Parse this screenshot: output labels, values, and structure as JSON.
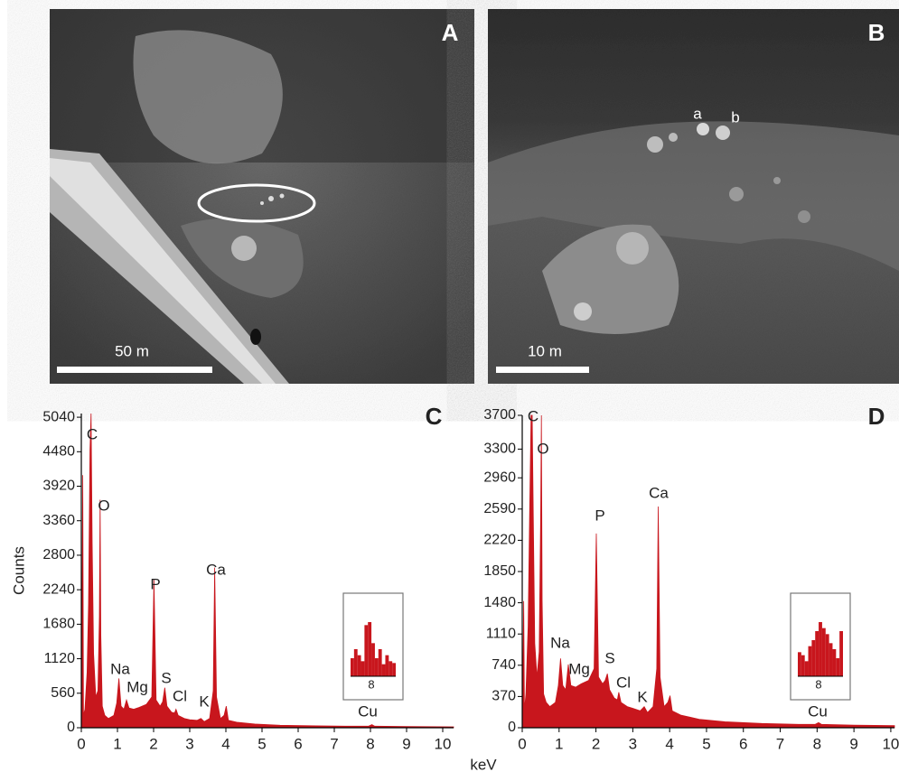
{
  "panels": [
    {
      "label": "A",
      "scale_bar": "50 m"
    },
    {
      "label": "B",
      "scale_bar": "10 m",
      "markers": [
        "a",
        "b"
      ]
    }
  ],
  "x_label": "keV",
  "chart_data": [
    {
      "type": "area",
      "label": "C",
      "y_label": "Counts",
      "color": "#c8161d",
      "xlim": [
        0,
        10.3
      ],
      "ylim": [
        0,
        5100
      ],
      "xticks": [
        0,
        1,
        2,
        3,
        4,
        5,
        6,
        7,
        8,
        9,
        10
      ],
      "yticks": [
        0,
        560,
        1120,
        1680,
        2240,
        2800,
        3360,
        3920,
        4480,
        5040
      ],
      "x": [
        0,
        0.04,
        0.06,
        0.1,
        0.16,
        0.2,
        0.24,
        0.27,
        0.3,
        0.34,
        0.4,
        0.46,
        0.5,
        0.52,
        0.54,
        0.58,
        0.65,
        0.75,
        0.9,
        0.98,
        1.04,
        1.1,
        1.18,
        1.25,
        1.32,
        1.45,
        1.6,
        1.8,
        1.95,
        2.01,
        2.07,
        2.18,
        2.25,
        2.31,
        2.37,
        2.5,
        2.58,
        2.62,
        2.68,
        2.85,
        3.0,
        3.2,
        3.31,
        3.4,
        3.55,
        3.65,
        3.69,
        3.74,
        3.85,
        3.95,
        4.01,
        4.07,
        4.3,
        4.8,
        5.5,
        6.5,
        7.5,
        7.95,
        8.04,
        8.12,
        9,
        10.3
      ],
      "values": [
        0,
        4100,
        200,
        300,
        900,
        2000,
        4500,
        5100,
        3000,
        1200,
        500,
        600,
        1800,
        3700,
        1500,
        350,
        200,
        150,
        200,
        400,
        800,
        350,
        300,
        450,
        320,
        300,
        330,
        380,
        500,
        2400,
        450,
        350,
        420,
        650,
        350,
        250,
        240,
        300,
        200,
        150,
        130,
        120,
        150,
        100,
        150,
        600,
        2600,
        500,
        150,
        200,
        350,
        120,
        90,
        60,
        40,
        30,
        25,
        25,
        50,
        25,
        20,
        15
      ],
      "peaks": [
        "C",
        "O",
        "Na",
        "Mg",
        "P",
        "S",
        "Cl",
        "K",
        "Ca",
        "Cu"
      ],
      "inset": {
        "tick": 8,
        "values": [
          30,
          45,
          35,
          25,
          85,
          90,
          55,
          30,
          45,
          20,
          35,
          25,
          22
        ]
      }
    },
    {
      "type": "area",
      "label": "D",
      "color": "#c8161d",
      "xlim": [
        0,
        10.1
      ],
      "ylim": [
        0,
        3700
      ],
      "xticks": [
        0,
        1,
        2,
        3,
        4,
        5,
        6,
        7,
        8,
        9,
        10
      ],
      "yticks": [
        0,
        370,
        740,
        1110,
        1480,
        1850,
        2220,
        2590,
        2960,
        3300,
        3700
      ],
      "x": [
        0,
        0.04,
        0.06,
        0.1,
        0.16,
        0.2,
        0.24,
        0.27,
        0.3,
        0.34,
        0.4,
        0.46,
        0.5,
        0.52,
        0.54,
        0.58,
        0.65,
        0.75,
        0.9,
        0.98,
        1.04,
        1.1,
        1.18,
        1.25,
        1.32,
        1.45,
        1.6,
        1.8,
        1.95,
        2.01,
        2.07,
        2.18,
        2.25,
        2.31,
        2.37,
        2.5,
        2.58,
        2.62,
        2.68,
        2.85,
        3.0,
        3.2,
        3.31,
        3.4,
        3.55,
        3.65,
        3.69,
        3.74,
        3.85,
        3.95,
        4.01,
        4.07,
        4.3,
        4.8,
        5.5,
        6.5,
        7.5,
        7.95,
        8.04,
        8.12,
        9,
        10.1
      ],
      "values": [
        0,
        1500,
        200,
        400,
        1200,
        2500,
        3700,
        3700,
        2500,
        1000,
        600,
        900,
        2500,
        3700,
        1500,
        400,
        300,
        250,
        300,
        500,
        820,
        500,
        450,
        750,
        500,
        480,
        520,
        560,
        700,
        2300,
        600,
        520,
        560,
        640,
        450,
        350,
        330,
        420,
        300,
        250,
        230,
        200,
        250,
        180,
        250,
        700,
        2620,
        600,
        250,
        300,
        380,
        200,
        150,
        100,
        70,
        50,
        40,
        40,
        60,
        40,
        30,
        25
      ],
      "peaks": [
        "C",
        "O",
        "Na",
        "Mg",
        "P",
        "S",
        "Cl",
        "K",
        "Ca",
        "Cu"
      ],
      "inset": {
        "tick": 8,
        "values": [
          40,
          35,
          25,
          50,
          60,
          75,
          90,
          80,
          70,
          55,
          45,
          30,
          75
        ]
      }
    }
  ]
}
